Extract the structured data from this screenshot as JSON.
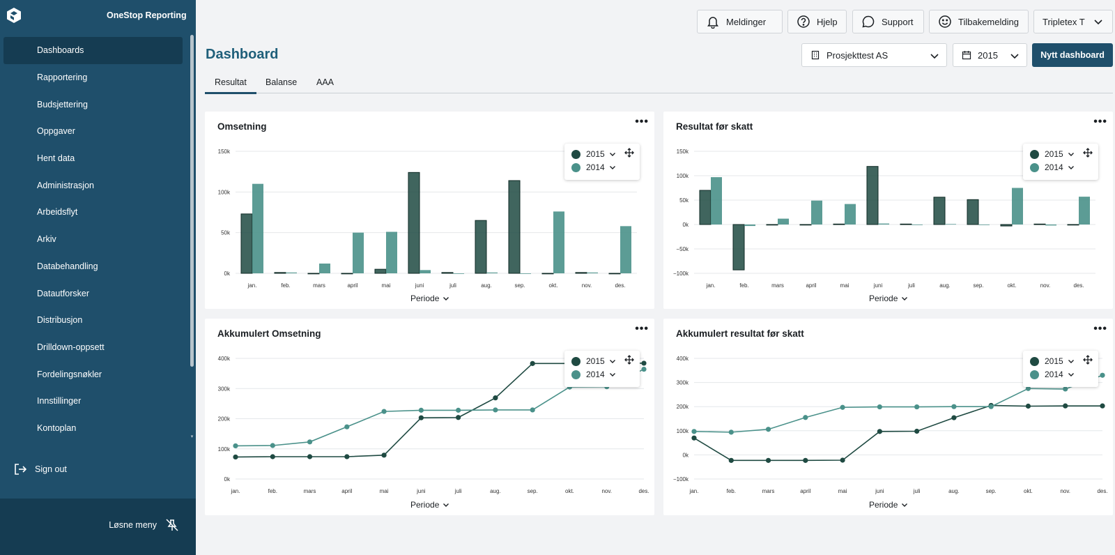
{
  "sidebar": {
    "brand": "OneStop Reporting",
    "items": [
      {
        "label": "Dashboards",
        "active": true
      },
      {
        "label": "Rapportering"
      },
      {
        "label": "Budsjettering"
      },
      {
        "label": "Oppgaver"
      },
      {
        "label": "Hent data"
      },
      {
        "label": "Administrasjon"
      },
      {
        "label": "Arbeidsflyt"
      },
      {
        "label": "Arkiv"
      },
      {
        "label": "Databehandling"
      },
      {
        "label": "Datautforsker"
      },
      {
        "label": "Distribusjon"
      },
      {
        "label": "Drilldown-oppsett"
      },
      {
        "label": "Fordelingsnøkler"
      },
      {
        "label": "Innstillinger"
      },
      {
        "label": "Kontoplan"
      }
    ],
    "sign_out": "Sign out",
    "unpin": "Løsne meny"
  },
  "topbar": {
    "notifications": "Meldinger",
    "help": "Hjelp",
    "support": "Support",
    "feedback": "Tilbakemelding",
    "account": "Tripletex T"
  },
  "header": {
    "title": "Dashboard",
    "company": "Prosjekttest AS",
    "year": "2015",
    "new_dashboard": "Nytt dashboard"
  },
  "tabs": [
    "Resultat",
    "Balanse",
    "AAA"
  ],
  "colors": {
    "series_2015": "#1f4a42",
    "series_2014": "#4a918a",
    "sidebar": "#1f4f6b",
    "accent": "#1f5f7a"
  },
  "period_label": "Periode",
  "chart_data": [
    {
      "title": "Omsetning",
      "type": "bar",
      "categories": [
        "jan.",
        "feb.",
        "mars",
        "april",
        "mai",
        "juni",
        "juli",
        "aug.",
        "sep.",
        "okt.",
        "nov.",
        "des."
      ],
      "series": [
        {
          "name": "2015",
          "values": [
            73000,
            1000,
            0,
            0,
            5000,
            124000,
            1000,
            65000,
            114000,
            0,
            1000,
            0
          ]
        },
        {
          "name": "2014",
          "values": [
            110000,
            1000,
            12000,
            50000,
            51000,
            4000,
            0,
            1000,
            0,
            76000,
            1000,
            58000
          ]
        }
      ],
      "ylim": [
        0,
        150000
      ],
      "yticks": [
        "0k",
        "50k",
        "100k",
        "150k"
      ],
      "grid": true,
      "legend": "top-right"
    },
    {
      "title": "Resultat før skatt",
      "type": "bar",
      "categories": [
        "jan.",
        "feb.",
        "mars",
        "april",
        "mai",
        "juni",
        "juli",
        "aug.",
        "sep.",
        "okt.",
        "nov.",
        "des."
      ],
      "series": [
        {
          "name": "2015",
          "values": [
            70000,
            -93000,
            0,
            0,
            1000,
            119000,
            1000,
            56000,
            51000,
            -3000,
            1000,
            0
          ]
        },
        {
          "name": "2014",
          "values": [
            97000,
            -3000,
            12000,
            49000,
            42000,
            2000,
            0,
            1000,
            0,
            75000,
            -2000,
            57000
          ]
        }
      ],
      "ylim": [
        -100000,
        150000
      ],
      "yticks": [
        "−100k",
        "−50k",
        "0k",
        "50k",
        "100k",
        "150k"
      ],
      "grid": true,
      "legend": "top-right"
    },
    {
      "title": "Akkumulert Omsetning",
      "type": "line",
      "categories": [
        "jan.",
        "feb.",
        "mars",
        "april",
        "mai",
        "juni",
        "juli",
        "aug.",
        "sep.",
        "okt.",
        "nov.",
        "des."
      ],
      "series": [
        {
          "name": "2015",
          "values": [
            73000,
            74000,
            74000,
            74000,
            79000,
            203000,
            204000,
            269000,
            383000,
            383000,
            384000,
            384000
          ]
        },
        {
          "name": "2014",
          "values": [
            110000,
            111000,
            123000,
            173000,
            224000,
            228000,
            228000,
            229000,
            229000,
            305000,
            306000,
            364000
          ]
        }
      ],
      "ylim": [
        0,
        400000
      ],
      "yticks": [
        "0k",
        "100k",
        "200k",
        "300k",
        "400k"
      ],
      "grid": true,
      "legend": "top-right"
    },
    {
      "title": "Akkumulert resultat før skatt",
      "type": "line",
      "categories": [
        "jan.",
        "feb.",
        "mars",
        "april",
        "mai",
        "juni",
        "juli",
        "aug.",
        "sep.",
        "okt.",
        "nov.",
        "des."
      ],
      "series": [
        {
          "name": "2015",
          "values": [
            70000,
            -23000,
            -23000,
            -23000,
            -22000,
            97000,
            98000,
            154000,
            205000,
            202000,
            203000,
            203000
          ]
        },
        {
          "name": "2014",
          "values": [
            97000,
            94000,
            106000,
            155000,
            197000,
            199000,
            199000,
            200000,
            200000,
            275000,
            273000,
            330000
          ]
        }
      ],
      "ylim": [
        -100000,
        400000
      ],
      "yticks": [
        "−100k",
        "0k",
        "100k",
        "200k",
        "300k",
        "400k"
      ],
      "grid": true,
      "legend": "top-right"
    }
  ]
}
